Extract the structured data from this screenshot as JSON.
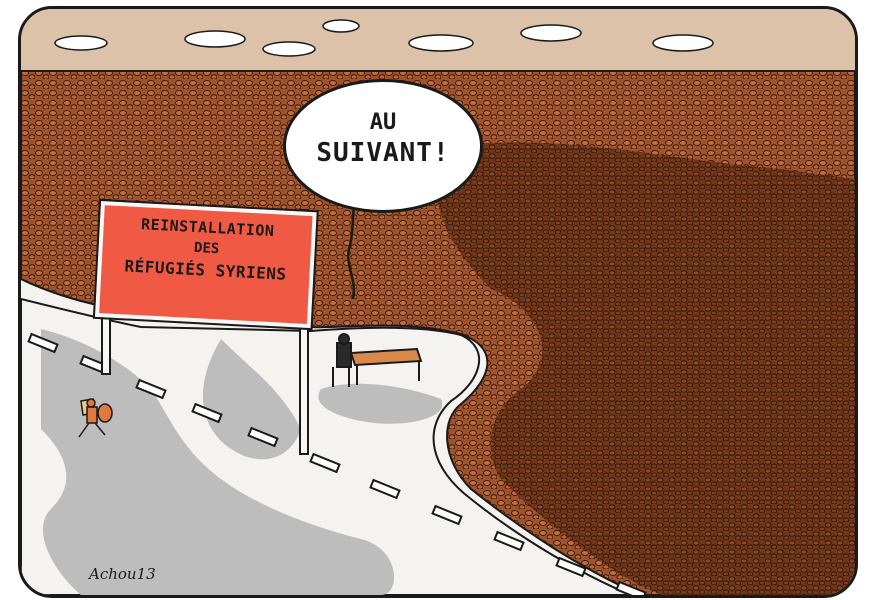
{
  "sign": {
    "line1": "REINSTALLATION",
    "line2": "DES",
    "line3": "RÉFUGIÉS SYRIENS"
  },
  "speech_bubble": {
    "line1": "AU",
    "line2": "SUIVANT!"
  },
  "signature": "Achou13",
  "colors": {
    "sky": "#dcc2a9",
    "crowd": "#a0522d",
    "crowd_dark": "#5a2a12",
    "sign_red": "#f05a45",
    "road": "#f5f3f0",
    "shadow": "#bdbdbd",
    "ink": "#1a1a1a"
  }
}
